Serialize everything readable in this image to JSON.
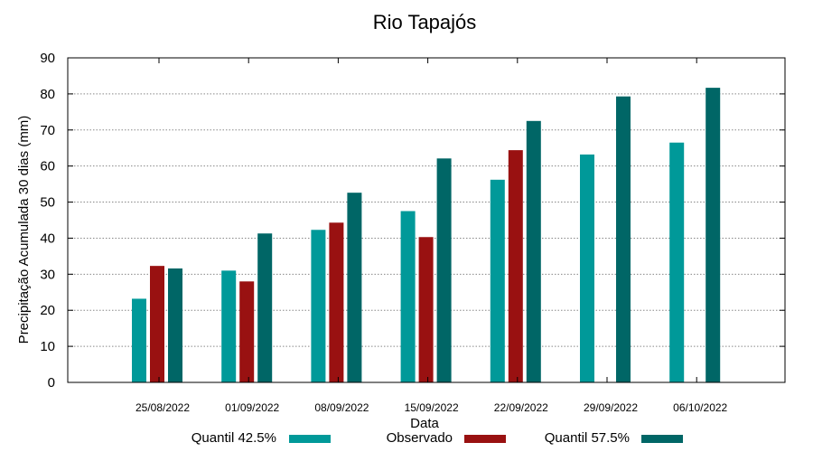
{
  "chart_data": {
    "type": "bar",
    "title": "Rio Tapajós",
    "xlabel": "Data",
    "ylabel": "Precipitação Acumulada 30 dias (mm)",
    "ylim": [
      0,
      90
    ],
    "yticks": [
      0,
      10,
      20,
      30,
      40,
      50,
      60,
      70,
      80,
      90
    ],
    "grid": true,
    "legend_position": "bottom",
    "categories": [
      "25/08/2022",
      "01/09/2022",
      "08/09/2022",
      "15/09/2022",
      "22/09/2022",
      "29/09/2022",
      "06/10/2022"
    ],
    "series": [
      {
        "name": "Quantil 42.5%",
        "color": "#009999",
        "values": [
          23.2,
          31.0,
          42.3,
          47.5,
          56.2,
          63.2,
          66.5
        ]
      },
      {
        "name": "Observado",
        "color": "#991111",
        "values": [
          32.3,
          28.0,
          44.3,
          40.3,
          64.4,
          null,
          null
        ]
      },
      {
        "name": "Quantil 57.5%",
        "color": "#006666",
        "values": [
          31.6,
          41.3,
          52.6,
          62.1,
          72.5,
          79.3,
          81.7
        ]
      }
    ]
  }
}
